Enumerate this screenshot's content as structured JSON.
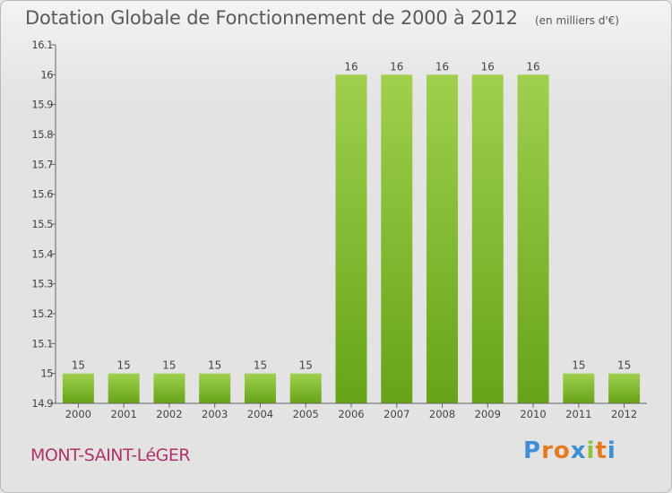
{
  "title": "Dotation Globale de Fonctionnement de 2000 à 2012",
  "units": "(en milliers d'€)",
  "commune": "MONT-SAINT-LéGER",
  "logo": {
    "letters": [
      "P",
      "r",
      "o",
      "x",
      "i",
      "t",
      "i"
    ],
    "colors": [
      "#3f8fd6",
      "#e57a1f",
      "#e57a1f",
      "#3f8fd6",
      "#8cc63e",
      "#e57a1f",
      "#3f8fd6"
    ]
  },
  "colors": {
    "bar_light": "#9fd04e",
    "bar_dark": "#67a318",
    "axis": "#666666",
    "grid_tick_label": "#444444"
  },
  "chart_data": {
    "type": "bar",
    "categories": [
      "2000",
      "2001",
      "2002",
      "2003",
      "2004",
      "2005",
      "2006",
      "2007",
      "2008",
      "2009",
      "2010",
      "2011",
      "2012"
    ],
    "values": [
      15,
      15,
      15,
      15,
      15,
      15,
      16,
      16,
      16,
      16,
      16,
      15,
      15
    ],
    "data_labels": [
      "15",
      "15",
      "15",
      "15",
      "15",
      "15",
      "16",
      "16",
      "16",
      "16",
      "16",
      "15",
      "15"
    ],
    "yticks": [
      "14.9",
      "15",
      "15.1",
      "15.2",
      "15.3",
      "15.4",
      "15.5",
      "15.6",
      "15.7",
      "15.8",
      "15.9",
      "16",
      "16.1"
    ],
    "ylim": [
      14.9,
      16.1
    ],
    "legend": "none",
    "grid": false
  }
}
